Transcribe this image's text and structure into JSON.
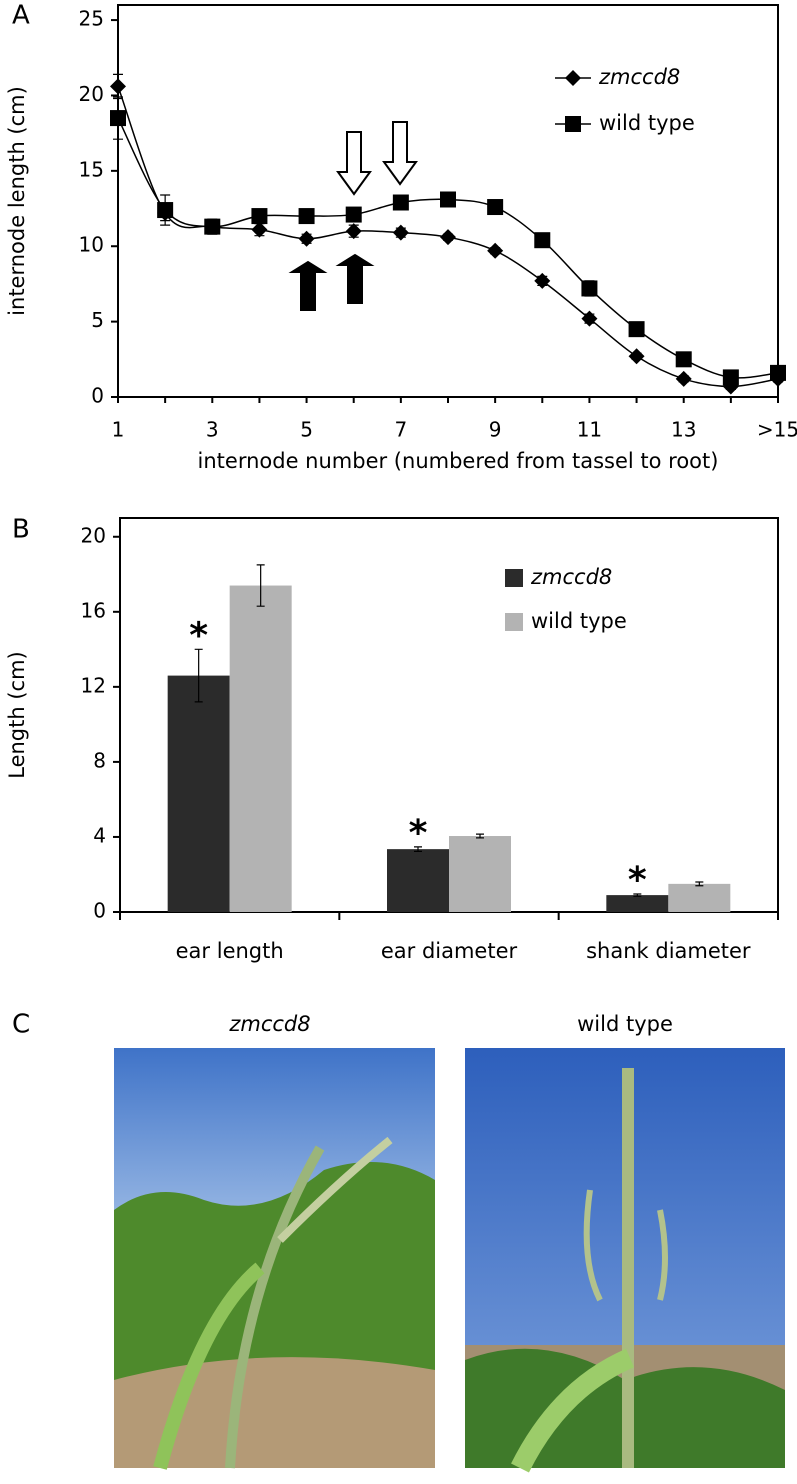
{
  "panel_labels": [
    "A",
    "B",
    "C"
  ],
  "chart_data": [
    {
      "type": "line",
      "xlabel": "internode number (numbered from tassel to root)",
      "ylabel": "internode length (cm)",
      "categories": [
        "1",
        null,
        "3",
        null,
        "5",
        null,
        "7",
        null,
        "9",
        null,
        "11",
        null,
        "13",
        null,
        ">15"
      ],
      "ylim": [
        0,
        26
      ],
      "yticks": [
        0,
        5,
        10,
        15,
        20,
        25
      ],
      "series": [
        {
          "name": "zmccd8",
          "color": "#000000",
          "marker": "diamond",
          "values": [
            20.6,
            12.2,
            11.3,
            11.1,
            10.5,
            11.0,
            10.9,
            10.6,
            9.7,
            7.7,
            5.2,
            2.7,
            1.2,
            0.7,
            1.2
          ],
          "errors": [
            0.8,
            0.5,
            0.4,
            0.4,
            0.3,
            0.4,
            0.3,
            0.2,
            0.2,
            0.3,
            0.3,
            0.2,
            0.2,
            0.2,
            0.2
          ]
        },
        {
          "name": "wild type",
          "color": "#000000",
          "marker": "square",
          "values": [
            18.5,
            12.4,
            11.3,
            12.0,
            12.0,
            12.1,
            12.9,
            13.1,
            12.6,
            10.4,
            7.2,
            4.5,
            2.5,
            1.3,
            1.6
          ],
          "errors": [
            1.4,
            1.0,
            0.5,
            0.3,
            0.2,
            0.3,
            0.3,
            0.3,
            0.3,
            0.4,
            0.5,
            0.3,
            0.2,
            0.2,
            0.2
          ]
        }
      ]
    },
    {
      "type": "bar",
      "ylabel": "Length (cm)",
      "categories": [
        "ear length",
        "ear diameter",
        "shank diameter"
      ],
      "ylim": [
        0,
        21
      ],
      "yticks": [
        0,
        4,
        8,
        12,
        16,
        20
      ],
      "annotations": [
        "*",
        "*",
        "*"
      ],
      "series": [
        {
          "name": "zmccd8",
          "color": "#2b2b2b",
          "values": [
            12.6,
            3.35,
            0.9
          ],
          "errors": [
            1.4,
            0.12,
            0.06
          ]
        },
        {
          "name": "wild type",
          "color": "#b3b3b3",
          "values": [
            17.4,
            4.05,
            1.5
          ],
          "errors": [
            1.1,
            0.1,
            0.1
          ]
        }
      ]
    }
  ],
  "photos": {
    "captions": [
      "zmccd8",
      "wild type"
    ]
  }
}
